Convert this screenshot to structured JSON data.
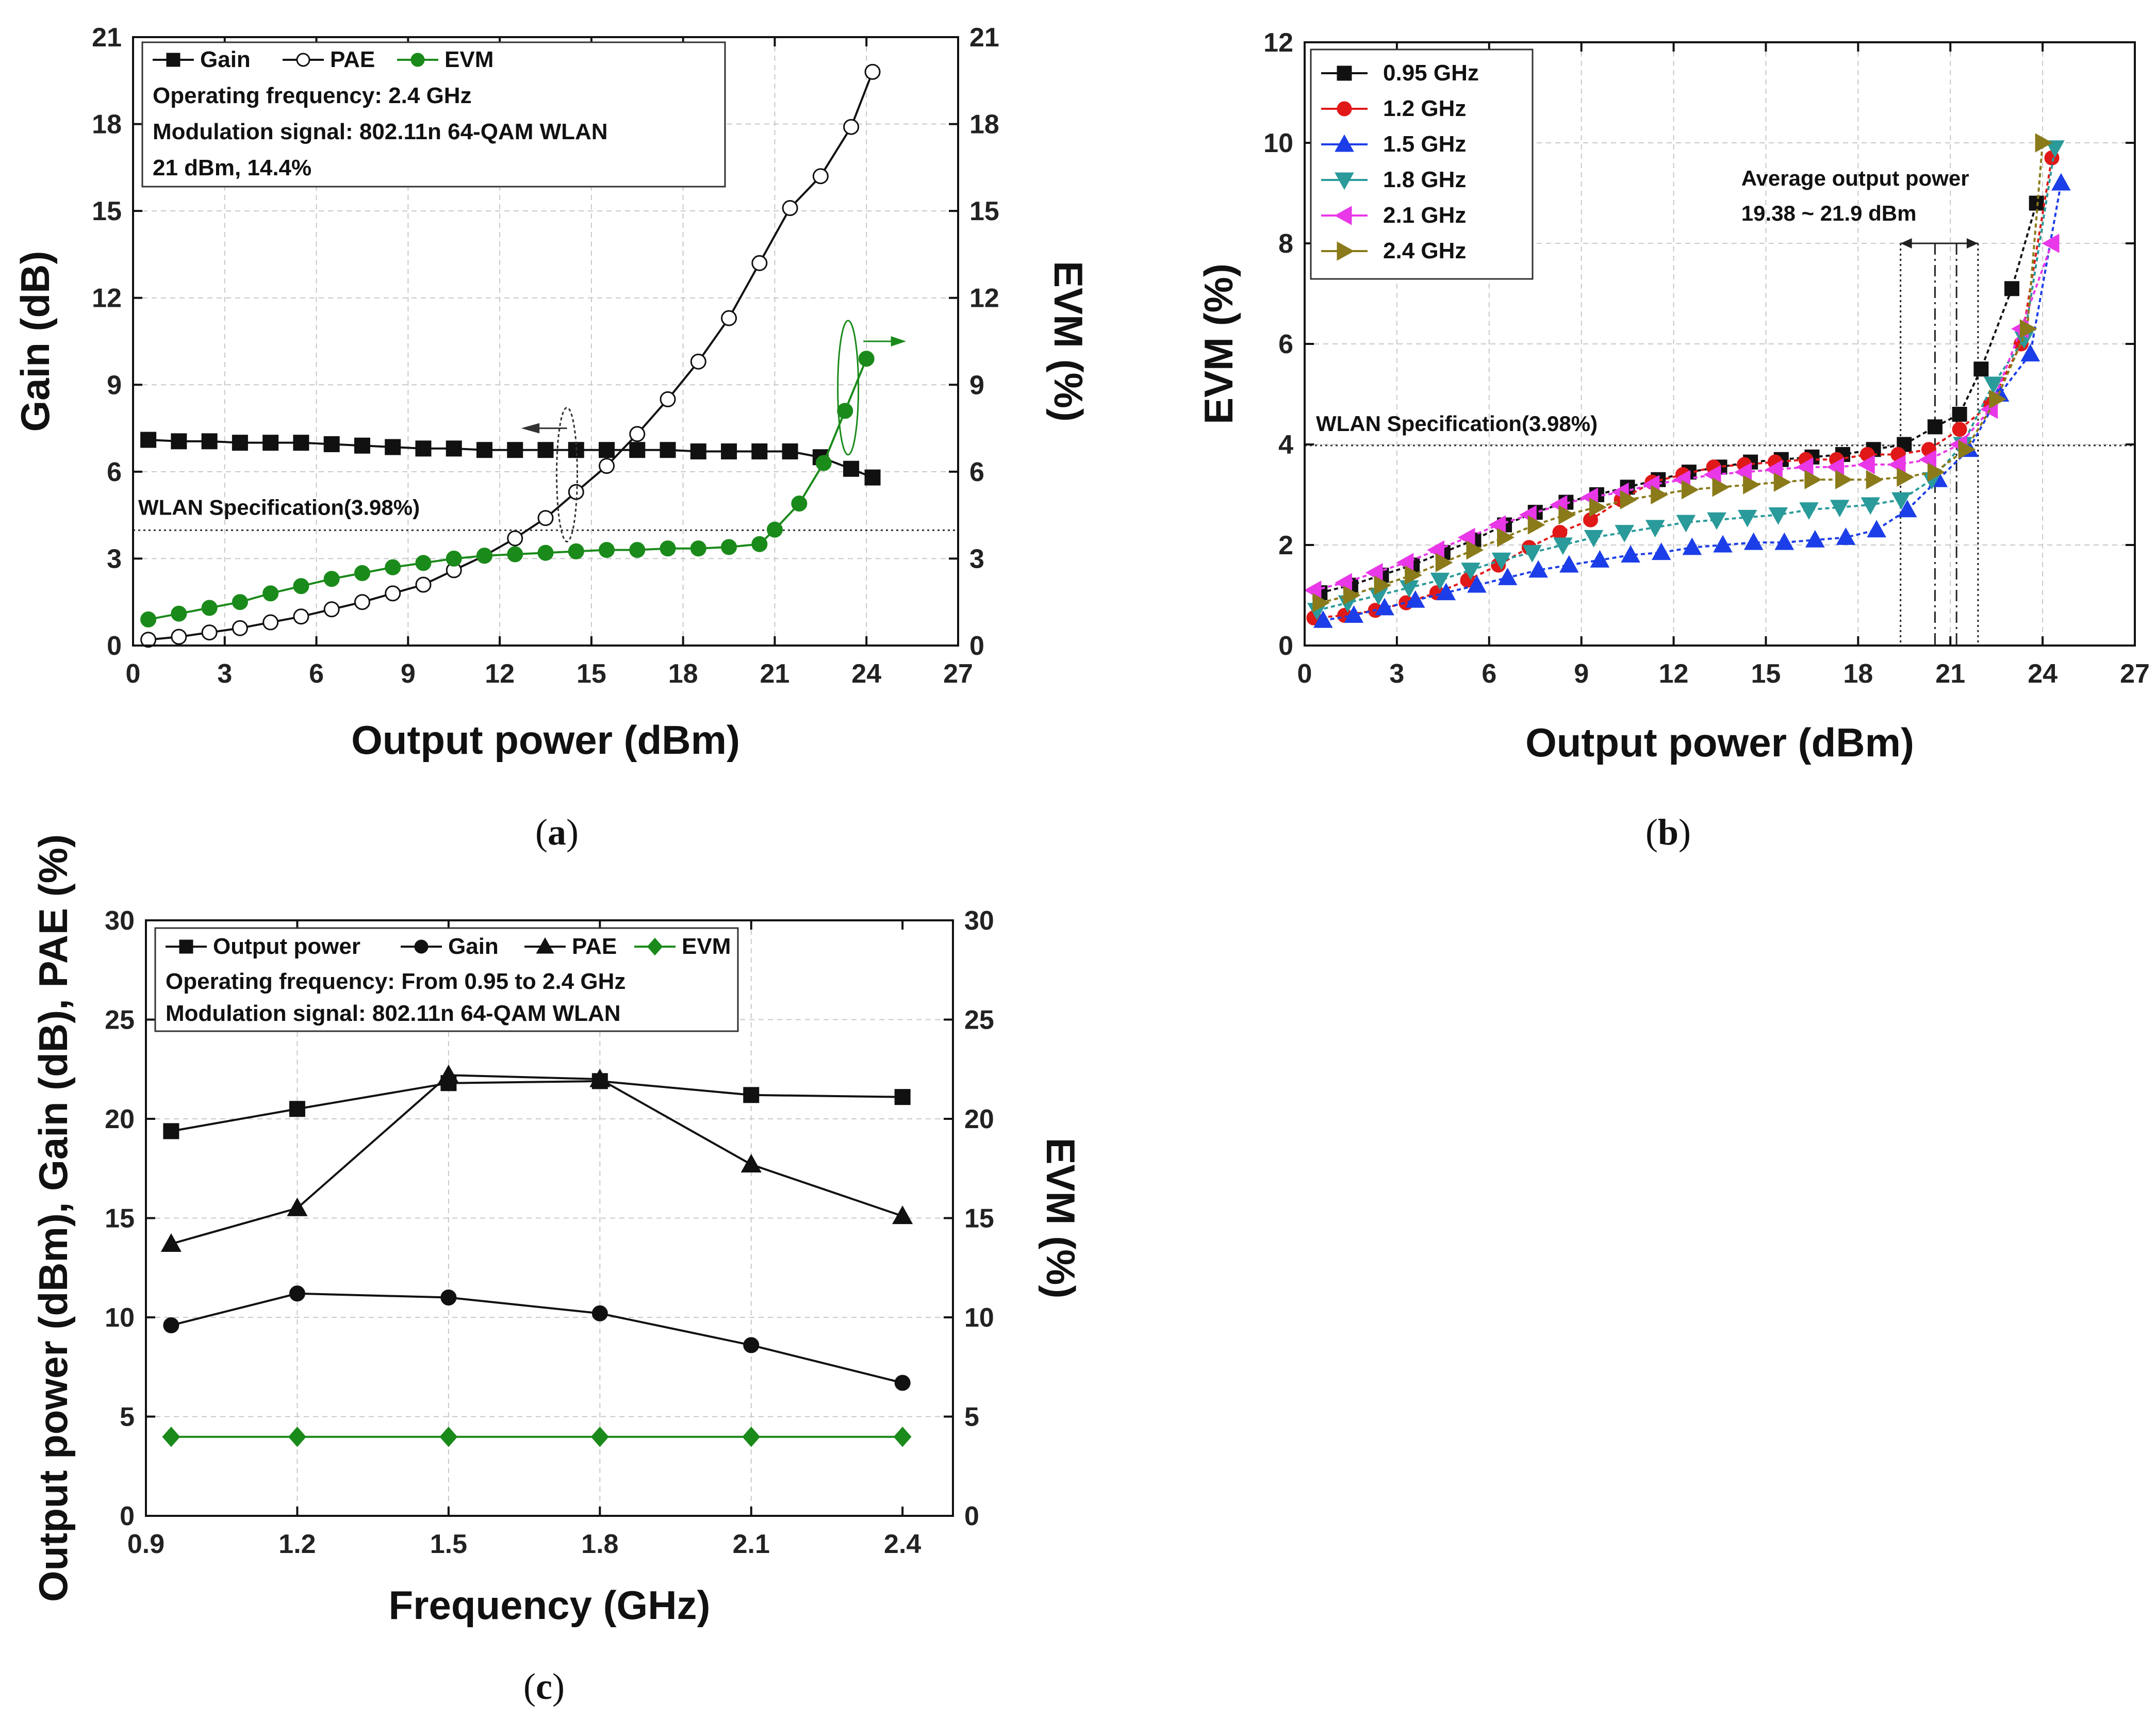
{
  "chart_data": [
    {
      "id": "a",
      "type": "line",
      "caption": "a",
      "xlabel": "Output power (dBm)",
      "ylabel": "Gain (dB)",
      "y2label": "EVM (%)",
      "xlim": [
        0,
        27
      ],
      "ylim": [
        0,
        21
      ],
      "y2lim": [
        0,
        21
      ],
      "xticks": [
        0,
        3,
        6,
        9,
        12,
        15,
        18,
        21,
        24,
        27
      ],
      "yticks": [
        0,
        3,
        6,
        9,
        12,
        15,
        18,
        21
      ],
      "grid": true,
      "legend": [
        {
          "label": "Gain",
          "color": "#111111",
          "marker": "square",
          "filled": true
        },
        {
          "label": "PAE",
          "color": "#111111",
          "marker": "circle",
          "filled": false
        },
        {
          "label": "EVM",
          "color": "#1a8a1a",
          "marker": "circle",
          "filled": true
        }
      ],
      "annotations": [
        "Operating frequency: 2.4 GHz",
        "Modulation signal: 802.11n 64-QAM WLAN",
        "21 dBm, 14.4%"
      ],
      "spec_line": {
        "label": "WLAN Specification(3.98%)",
        "value": 3.98
      },
      "series": [
        {
          "name": "Gain",
          "color": "#111111",
          "marker": "square",
          "filled": true,
          "axis": "left",
          "x": [
            0.5,
            1.5,
            2.5,
            3.5,
            4.5,
            5.5,
            6.5,
            7.5,
            8.5,
            9.5,
            10.5,
            11.5,
            12.5,
            13.5,
            14.5,
            15.5,
            16.5,
            17.5,
            18.5,
            19.5,
            20.5,
            21.5,
            22.5,
            23.5,
            24.2
          ],
          "y": [
            7.1,
            7.05,
            7.05,
            7.0,
            7.0,
            7.0,
            6.95,
            6.9,
            6.85,
            6.8,
            6.8,
            6.75,
            6.75,
            6.75,
            6.75,
            6.75,
            6.75,
            6.75,
            6.7,
            6.7,
            6.7,
            6.7,
            6.5,
            6.1,
            5.8
          ]
        },
        {
          "name": "PAE",
          "color": "#111111",
          "marker": "circle",
          "filled": false,
          "axis": "left",
          "x": [
            0.5,
            1.5,
            2.5,
            3.5,
            4.5,
            5.5,
            6.5,
            7.5,
            8.5,
            9.5,
            10.5,
            11.5,
            12.5,
            13.5,
            14.5,
            15.5,
            16.5,
            17.5,
            18.5,
            19.5,
            20.5,
            21.5,
            22.5,
            23.5,
            24.2
          ],
          "y": [
            0.2,
            0.3,
            0.45,
            0.6,
            0.8,
            1.0,
            1.25,
            1.5,
            1.8,
            2.1,
            2.6,
            3.1,
            3.7,
            4.4,
            5.3,
            6.2,
            7.3,
            8.5,
            9.8,
            11.3,
            13.2,
            15.1,
            16.2,
            17.9,
            19.8
          ]
        },
        {
          "name": "EVM",
          "color": "#1a8a1a",
          "marker": "circle",
          "filled": true,
          "axis": "right",
          "x": [
            0.5,
            1.5,
            2.5,
            3.5,
            4.5,
            5.5,
            6.5,
            7.5,
            8.5,
            9.5,
            10.5,
            11.5,
            12.5,
            13.5,
            14.5,
            15.5,
            16.5,
            17.5,
            18.5,
            19.5,
            20.5,
            21.0,
            21.8,
            22.6,
            23.3,
            24.0
          ],
          "y": [
            0.9,
            1.1,
            1.3,
            1.5,
            1.8,
            2.05,
            2.3,
            2.5,
            2.7,
            2.85,
            3.0,
            3.1,
            3.15,
            3.2,
            3.25,
            3.3,
            3.3,
            3.35,
            3.35,
            3.4,
            3.5,
            4.0,
            4.9,
            6.3,
            8.1,
            9.9
          ]
        }
      ]
    },
    {
      "id": "b",
      "type": "line",
      "caption": "b",
      "xlabel": "Output power (dBm)",
      "ylabel": "EVM (%)",
      "xlim": [
        0,
        27
      ],
      "ylim": [
        0,
        12
      ],
      "xticks": [
        0,
        3,
        6,
        9,
        12,
        15,
        18,
        21,
        24,
        27
      ],
      "yticks": [
        0,
        2,
        4,
        6,
        8,
        10,
        12
      ],
      "grid": true,
      "legend_title": "",
      "annotations": [
        "Average output power",
        "19.38 ~ 21.9 dBm"
      ],
      "spec_line": {
        "label": "WLAN Specification(3.98%)",
        "value": 3.98
      },
      "range_markers": [
        19.38,
        20.5,
        21.2,
        21.9
      ],
      "series": [
        {
          "name": "0.95 GHz",
          "color": "#111111",
          "marker": "square",
          "x": [
            0.5,
            1.5,
            2.5,
            3.5,
            4.5,
            5.5,
            6.5,
            7.5,
            8.5,
            9.5,
            10.5,
            11.5,
            12.5,
            13.5,
            14.5,
            15.5,
            16.5,
            17.5,
            18.5,
            19.5,
            20.5,
            21.3,
            22.0,
            23.0,
            23.8
          ],
          "y": [
            1.05,
            1.2,
            1.4,
            1.6,
            1.85,
            2.1,
            2.4,
            2.65,
            2.85,
            3.0,
            3.15,
            3.3,
            3.45,
            3.55,
            3.65,
            3.7,
            3.75,
            3.8,
            3.9,
            4.0,
            4.35,
            4.6,
            5.5,
            7.1,
            8.8
          ]
        },
        {
          "name": "1.2 GHz",
          "color": "#e01818",
          "marker": "circle",
          "x": [
            0.3,
            1.3,
            2.3,
            3.3,
            4.3,
            5.3,
            6.3,
            7.3,
            8.3,
            9.3,
            10.3,
            11.3,
            12.3,
            13.3,
            14.3,
            15.3,
            16.3,
            17.3,
            18.3,
            19.3,
            20.3,
            21.3,
            22.3,
            23.3,
            24.3
          ],
          "y": [
            0.55,
            0.6,
            0.7,
            0.85,
            1.05,
            1.3,
            1.6,
            1.95,
            2.25,
            2.5,
            2.9,
            3.25,
            3.4,
            3.55,
            3.6,
            3.65,
            3.7,
            3.7,
            3.8,
            3.8,
            3.9,
            4.3,
            4.8,
            6.0,
            9.7
          ]
        },
        {
          "name": "1.5 GHz",
          "color": "#1c3ee8",
          "marker": "triangle-up",
          "x": [
            0.6,
            1.6,
            2.6,
            3.6,
            4.6,
            5.6,
            6.6,
            7.6,
            8.6,
            9.6,
            10.6,
            11.6,
            12.6,
            13.6,
            14.6,
            15.6,
            16.6,
            17.6,
            18.6,
            19.6,
            20.6,
            21.6,
            22.6,
            23.6,
            24.6
          ],
          "y": [
            0.5,
            0.6,
            0.75,
            0.9,
            1.05,
            1.2,
            1.35,
            1.5,
            1.6,
            1.7,
            1.8,
            1.85,
            1.95,
            2.0,
            2.05,
            2.05,
            2.1,
            2.15,
            2.3,
            2.7,
            3.3,
            3.9,
            5.0,
            5.8,
            9.2
          ]
        },
        {
          "name": "1.8 GHz",
          "color": "#2a9a9a",
          "marker": "triangle-down",
          "x": [
            0.4,
            1.4,
            2.4,
            3.4,
            4.4,
            5.4,
            6.4,
            7.4,
            8.4,
            9.4,
            10.4,
            11.4,
            12.4,
            13.4,
            14.4,
            15.4,
            16.4,
            17.4,
            18.4,
            19.4,
            20.4,
            21.4,
            22.4,
            23.4,
            24.4
          ],
          "y": [
            0.7,
            0.85,
            1.0,
            1.15,
            1.3,
            1.5,
            1.7,
            1.85,
            2.0,
            2.15,
            2.25,
            2.35,
            2.45,
            2.5,
            2.55,
            2.6,
            2.7,
            2.75,
            2.8,
            2.9,
            3.3,
            4.0,
            5.2,
            6.1,
            9.9
          ]
        },
        {
          "name": "2.1 GHz",
          "color": "#e838e8",
          "marker": "triangle-left",
          "x": [
            0.3,
            1.3,
            2.3,
            3.3,
            4.3,
            5.3,
            6.3,
            7.3,
            8.3,
            9.3,
            10.3,
            11.3,
            12.3,
            13.3,
            14.3,
            15.3,
            16.3,
            17.3,
            18.3,
            19.3,
            20.3,
            21.3,
            22.3,
            23.3,
            24.3
          ],
          "y": [
            1.1,
            1.25,
            1.45,
            1.65,
            1.9,
            2.15,
            2.4,
            2.6,
            2.8,
            2.95,
            3.05,
            3.2,
            3.3,
            3.4,
            3.45,
            3.5,
            3.55,
            3.55,
            3.6,
            3.6,
            3.7,
            4.0,
            4.7,
            6.3,
            8.0
          ]
        },
        {
          "name": "2.4 GHz",
          "color": "#8a7a1a",
          "marker": "triangle-right",
          "x": [
            0.5,
            1.5,
            2.5,
            3.5,
            4.5,
            5.5,
            6.5,
            7.5,
            8.5,
            9.5,
            10.5,
            11.5,
            12.5,
            13.5,
            14.5,
            15.5,
            16.5,
            17.5,
            18.5,
            19.5,
            20.5,
            21.5,
            22.5,
            23.5,
            24.0
          ],
          "y": [
            0.85,
            1.0,
            1.2,
            1.4,
            1.65,
            1.9,
            2.15,
            2.4,
            2.6,
            2.75,
            2.9,
            3.0,
            3.1,
            3.15,
            3.2,
            3.25,
            3.3,
            3.3,
            3.3,
            3.35,
            3.45,
            3.9,
            4.9,
            6.3,
            10.0
          ]
        }
      ]
    },
    {
      "id": "c",
      "type": "line",
      "caption": "c",
      "xlabel": "Frequency (GHz)",
      "ylabel": "Output power (dBm), Gain (dB), PAE (%)",
      "y2label": "EVM (%)",
      "xlim": [
        0.9,
        2.5
      ],
      "ylim": [
        0,
        30
      ],
      "y2lim": [
        0,
        30
      ],
      "xticks": [
        0.9,
        1.2,
        1.5,
        1.8,
        2.1,
        2.4
      ],
      "xtick_labels": [
        "0.9",
        "1.2",
        "1.5",
        "1.8",
        "2.1",
        "2.4"
      ],
      "yticks": [
        0,
        5,
        10,
        15,
        20,
        25,
        30
      ],
      "grid": true,
      "annotations": [
        "Operating frequency: From 0.95 to 2.4 GHz",
        "Modulation signal: 802.11n 64-QAM WLAN"
      ],
      "series": [
        {
          "name": "Output power",
          "color": "#111111",
          "marker": "square",
          "axis": "left",
          "x": [
            0.95,
            1.2,
            1.5,
            1.8,
            2.1,
            2.4
          ],
          "y": [
            19.38,
            20.5,
            21.8,
            21.9,
            21.2,
            21.1
          ]
        },
        {
          "name": "Gain",
          "color": "#111111",
          "marker": "circle",
          "axis": "left",
          "x": [
            0.95,
            1.2,
            1.5,
            1.8,
            2.1,
            2.4
          ],
          "y": [
            9.6,
            11.2,
            11.0,
            10.2,
            8.6,
            6.7
          ]
        },
        {
          "name": "PAE",
          "color": "#111111",
          "marker": "triangle-up",
          "axis": "left",
          "x": [
            0.95,
            1.2,
            1.5,
            1.8,
            2.1,
            2.4
          ],
          "y": [
            13.7,
            15.5,
            22.2,
            22.0,
            17.7,
            15.1
          ]
        },
        {
          "name": "EVM",
          "color": "#1a8a1a",
          "marker": "diamond",
          "axis": "right",
          "x": [
            0.95,
            1.2,
            1.5,
            1.8,
            2.1,
            2.4
          ],
          "y": [
            3.98,
            3.98,
            3.98,
            3.98,
            3.98,
            3.98
          ]
        }
      ]
    }
  ]
}
